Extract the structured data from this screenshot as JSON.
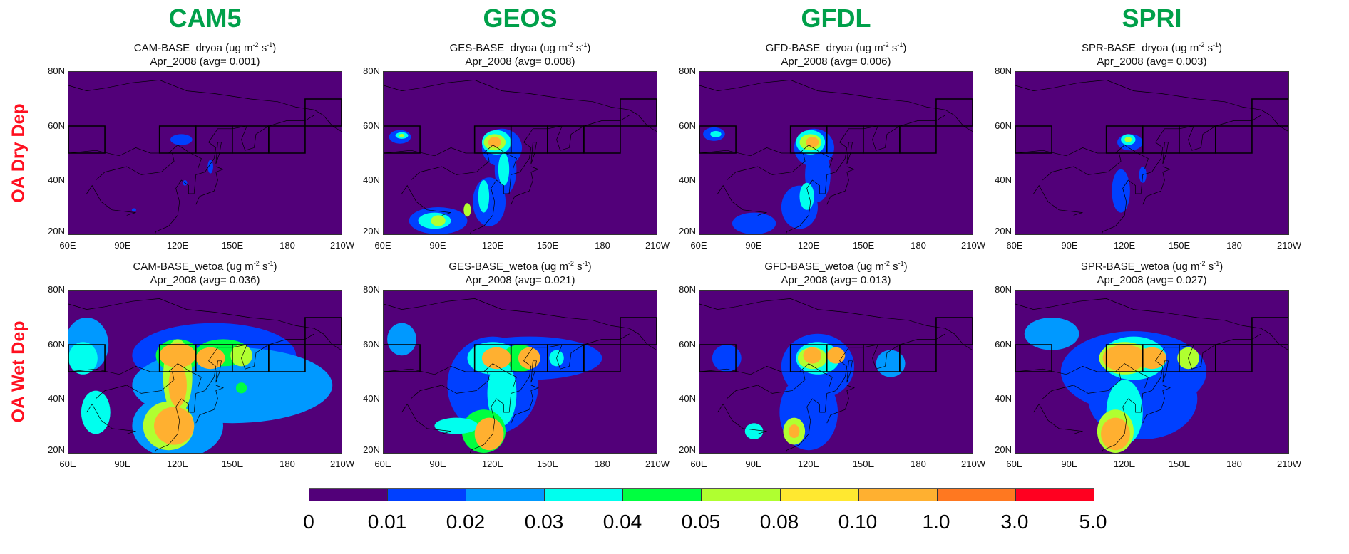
{
  "columns": [
    "CAM5",
    "GEOS",
    "GFDL",
    "SPRI"
  ],
  "rows": [
    "OA Dry Dep",
    "OA Wet Dep"
  ],
  "units_prefix": "(ug m",
  "panels": [
    {
      "title": "CAM-BASE_dryoa",
      "period": "Apr_2008",
      "avg": "0.001"
    },
    {
      "title": "GES-BASE_dryoa",
      "period": "Apr_2008",
      "avg": "0.008"
    },
    {
      "title": "GFD-BASE_dryoa",
      "period": "Apr_2008",
      "avg": "0.006"
    },
    {
      "title": "SPR-BASE_dryoa",
      "period": "Apr_2008",
      "avg": "0.003"
    },
    {
      "title": "CAM-BASE_wetoa",
      "period": "Apr_2008",
      "avg": "0.036"
    },
    {
      "title": "GES-BASE_wetoa",
      "period": "Apr_2008",
      "avg": "0.021"
    },
    {
      "title": "GFD-BASE_wetoa",
      "period": "Apr_2008",
      "avg": "0.013"
    },
    {
      "title": "SPR-BASE_wetoa",
      "period": "Apr_2008",
      "avg": "0.027"
    }
  ],
  "chart_data": {
    "type": "heatmap",
    "map_projection": "lat-lon",
    "xlim": [
      60,
      210
    ],
    "ylim": [
      20,
      80
    ],
    "x_ticks": [
      "60E",
      "90E",
      "120E",
      "150E",
      "180",
      "210W"
    ],
    "x_tick_values": [
      60,
      90,
      120,
      150,
      180,
      210
    ],
    "y_ticks": [
      "20N",
      "40N",
      "60N",
      "80N"
    ],
    "y_tick_values": [
      20,
      40,
      60,
      80
    ],
    "colorbar": {
      "levels": [
        "0",
        "0.01",
        "0.02",
        "0.03",
        "0.04",
        "0.05",
        "0.08",
        "0.10",
        "1.0",
        "3.0",
        "5.0"
      ],
      "colors": [
        "#520079",
        "#0040ff",
        "#0099ff",
        "#00ffee",
        "#00ff40",
        "#b0ff30",
        "#ffe830",
        "#ffb030",
        "#ff7820",
        "#ff0020"
      ],
      "placement": "bottom"
    },
    "background_color": "#520079",
    "region_boxes": [
      {
        "lon": [
          60,
          80
        ],
        "lat": [
          50,
          60
        ]
      },
      {
        "lon": [
          110,
          130
        ],
        "lat": [
          50,
          60
        ]
      },
      {
        "lon": [
          130,
          150
        ],
        "lat": [
          50,
          60
        ]
      },
      {
        "lon": [
          150,
          170
        ],
        "lat": [
          50,
          60
        ]
      },
      {
        "lon": [
          170,
          190
        ],
        "lat": [
          50,
          60
        ]
      },
      {
        "lon": [
          190,
          210
        ],
        "lat": [
          60,
          70
        ]
      }
    ],
    "approx_fields_lon_lat_rlon_rlat_bin": [
      [
        [
          122,
          55,
          6,
          2,
          1
        ],
        [
          138,
          45,
          1.5,
          2.5,
          1
        ],
        [
          124,
          39,
          1.2,
          1,
          1
        ],
        [
          96,
          29,
          1.2,
          0.6,
          1
        ]
      ],
      [
        [
          69,
          56,
          6,
          2.5,
          1
        ],
        [
          70,
          56.5,
          3.5,
          1.2,
          3
        ],
        [
          70,
          56.5,
          1.5,
          0.6,
          5
        ],
        [
          125,
          52,
          11,
          7,
          1
        ],
        [
          127,
          44,
          6,
          9,
          1
        ],
        [
          118,
          32,
          9,
          9,
          1
        ],
        [
          90,
          25,
          16,
          5,
          1
        ],
        [
          122,
          54,
          8,
          4.5,
          3
        ],
        [
          121,
          54,
          6,
          3,
          5
        ],
        [
          121,
          54,
          3.5,
          2,
          7
        ],
        [
          126,
          44,
          3,
          6,
          3
        ],
        [
          115,
          34,
          3,
          6,
          3
        ],
        [
          88,
          25,
          9,
          3,
          3
        ],
        [
          90,
          25,
          4,
          2,
          5
        ],
        [
          106,
          29,
          2,
          2.5,
          5
        ]
      ],
      [
        [
          68,
          57,
          6,
          2.5,
          1
        ],
        [
          69,
          57,
          3,
          1.2,
          3
        ],
        [
          123,
          52,
          11,
          7,
          1
        ],
        [
          125,
          42,
          7,
          10,
          1
        ],
        [
          115,
          30,
          10,
          8,
          1
        ],
        [
          90,
          24,
          12,
          4,
          1
        ],
        [
          121,
          54,
          8,
          4.5,
          3
        ],
        [
          121,
          54,
          6,
          3,
          5
        ],
        [
          122,
          54,
          3.5,
          2,
          7
        ],
        [
          119,
          34,
          4,
          5,
          3
        ]
      ],
      [
        [
          123,
          54,
          7,
          3,
          1
        ],
        [
          122,
          55,
          4,
          2,
          3
        ],
        [
          122,
          55,
          2,
          1,
          5
        ],
        [
          118,
          36,
          5,
          8,
          1
        ],
        [
          130,
          42,
          2,
          3,
          1
        ]
      ],
      [
        [
          70,
          60,
          12,
          10,
          2
        ],
        [
          140,
          56,
          45,
          12,
          1
        ],
        [
          150,
          45,
          55,
          14,
          2
        ],
        [
          120,
          30,
          25,
          12,
          2
        ],
        [
          75,
          35,
          8,
          8,
          3
        ],
        [
          68,
          55,
          8,
          6,
          3
        ],
        [
          120,
          56,
          12,
          6,
          4
        ],
        [
          145,
          57,
          15,
          5,
          4
        ],
        [
          120,
          48,
          8,
          14,
          5
        ],
        [
          115,
          30,
          14,
          9,
          5
        ],
        [
          120,
          56,
          10,
          4.5,
          7
        ],
        [
          138,
          55,
          8,
          4,
          7
        ],
        [
          118,
          30,
          11,
          7,
          7
        ],
        [
          120,
          45,
          5,
          8,
          7
        ],
        [
          155,
          56,
          6,
          4,
          5
        ],
        [
          155,
          44,
          3,
          2,
          4
        ]
      ],
      [
        [
          120,
          45,
          25,
          18,
          1
        ],
        [
          140,
          55,
          40,
          8,
          1
        ],
        [
          70,
          62,
          8,
          6,
          2
        ],
        [
          120,
          55,
          14,
          6,
          3
        ],
        [
          135,
          55,
          10,
          5,
          4
        ],
        [
          125,
          42,
          8,
          12,
          3
        ],
        [
          115,
          28,
          12,
          8,
          4
        ],
        [
          100,
          30,
          12,
          3,
          3
        ],
        [
          122,
          55,
          8,
          4,
          7
        ],
        [
          140,
          55,
          6,
          4,
          7
        ],
        [
          118,
          27,
          8,
          6,
          7
        ],
        [
          155,
          55,
          4,
          3,
          3
        ]
      ],
      [
        [
          125,
          52,
          20,
          12,
          1
        ],
        [
          120,
          35,
          16,
          14,
          1
        ],
        [
          75,
          55,
          8,
          5,
          1
        ],
        [
          165,
          53,
          8,
          5,
          2
        ],
        [
          125,
          55,
          12,
          6,
          3
        ],
        [
          122,
          55,
          8,
          4,
          5
        ],
        [
          122,
          56,
          5,
          3,
          7
        ],
        [
          135,
          56,
          5,
          3,
          7
        ],
        [
          112,
          28,
          6,
          5,
          5
        ],
        [
          112,
          28,
          3,
          2.5,
          7
        ],
        [
          90,
          28,
          5,
          3,
          3
        ]
      ],
      [
        [
          125,
          50,
          40,
          15,
          1
        ],
        [
          130,
          40,
          30,
          15,
          1
        ],
        [
          80,
          64,
          15,
          6,
          2
        ],
        [
          125,
          55,
          18,
          8,
          3
        ],
        [
          120,
          35,
          10,
          12,
          3
        ],
        [
          120,
          55,
          14,
          6,
          5
        ],
        [
          115,
          28,
          10,
          8,
          5
        ],
        [
          120,
          55,
          12,
          5,
          7
        ],
        [
          135,
          55,
          8,
          4,
          7
        ],
        [
          115,
          27,
          8,
          6,
          7
        ],
        [
          155,
          55,
          6,
          4,
          5
        ]
      ]
    ]
  }
}
